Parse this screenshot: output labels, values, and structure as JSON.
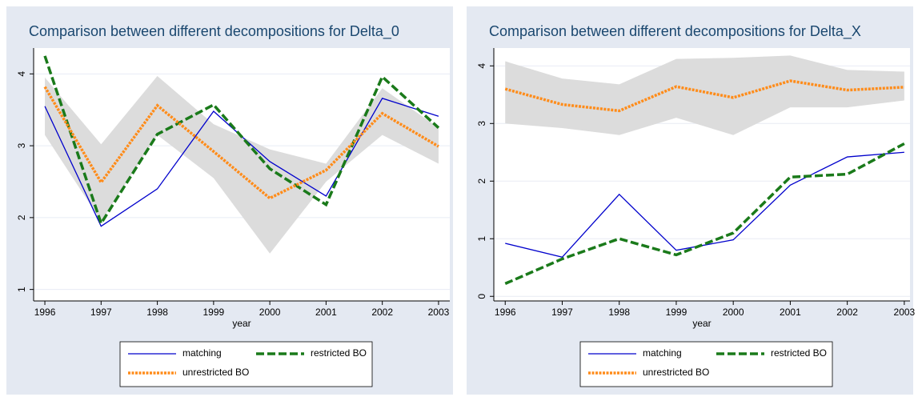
{
  "chart_data": [
    {
      "type": "line",
      "title": "Comparison between different decompositions for Delta_0",
      "x_label": "year",
      "x": [
        1996,
        1997,
        1998,
        1999,
        2000,
        2001,
        2002,
        2003
      ],
      "xlim": [
        1995.8,
        2003.2
      ],
      "xticks": [
        1996,
        1997,
        1998,
        1999,
        2000,
        2001,
        2002,
        2003
      ],
      "ylim": [
        0.84,
        4.36
      ],
      "yticks": [
        1,
        2,
        3,
        4
      ],
      "band": {
        "color": "#dcdcdc",
        "lower": [
          3.15,
          1.95,
          3.15,
          2.55,
          1.5,
          2.5,
          3.15,
          2.75
        ],
        "upper": [
          3.95,
          3.02,
          3.97,
          3.3,
          2.95,
          2.75,
          3.8,
          3.25
        ]
      },
      "series": [
        {
          "name": "matching",
          "color": "#0000cc",
          "values": [
            3.55,
            1.88,
            2.4,
            3.48,
            2.78,
            2.3,
            3.66,
            3.41
          ]
        },
        {
          "name": "restricted BO",
          "color": "#1a7a1a",
          "values": [
            4.25,
            1.92,
            3.16,
            3.57,
            2.68,
            2.18,
            3.96,
            3.25
          ]
        },
        {
          "name": "unrestricted BO",
          "color": "#ff8c1a",
          "values": [
            3.82,
            2.49,
            3.56,
            2.92,
            2.27,
            2.66,
            3.45,
            2.99
          ]
        }
      ]
    },
    {
      "type": "line",
      "title": "Comparison between different decompositions for Delta_X",
      "x_label": "year",
      "x": [
        1996,
        1997,
        1998,
        1999,
        2000,
        2001,
        2002,
        2003
      ],
      "xlim": [
        1995.8,
        2003.1
      ],
      "xticks": [
        1996,
        1997,
        1998,
        1999,
        2000,
        2001,
        2002,
        2003
      ],
      "ylim": [
        -0.08,
        4.31
      ],
      "yticks": [
        0,
        1,
        2,
        3,
        4
      ],
      "band": {
        "color": "#dcdcdc",
        "lower": [
          3.0,
          2.92,
          2.8,
          3.1,
          2.8,
          3.28,
          3.28,
          3.4
        ],
        "upper": [
          4.08,
          3.78,
          3.68,
          4.12,
          4.14,
          4.18,
          3.93,
          3.9
        ]
      },
      "series": [
        {
          "name": "matching",
          "color": "#0000cc",
          "values": [
            0.92,
            0.68,
            1.77,
            0.8,
            0.98,
            1.93,
            2.42,
            2.5
          ]
        },
        {
          "name": "restricted BO",
          "color": "#1a7a1a",
          "values": [
            0.22,
            0.65,
            1.0,
            0.72,
            1.1,
            2.07,
            2.12,
            2.65
          ]
        },
        {
          "name": "unrestricted BO",
          "color": "#ff8c1a",
          "values": [
            3.6,
            3.33,
            3.22,
            3.64,
            3.45,
            3.74,
            3.58,
            3.63
          ]
        }
      ]
    }
  ]
}
